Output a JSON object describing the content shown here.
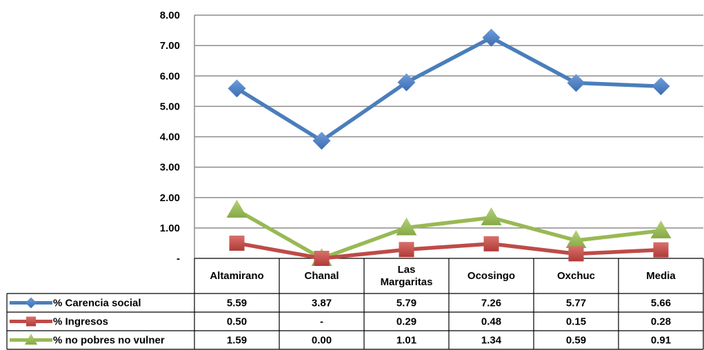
{
  "chart_data": {
    "type": "line",
    "categories": [
      "Altamirano",
      "Chanal",
      "Las Margaritas",
      "Ocosingo",
      "Oxchuc",
      "Media"
    ],
    "category_lines": [
      [
        "Altamirano"
      ],
      [
        "Chanal"
      ],
      [
        "Las",
        "Margaritas"
      ],
      [
        "Ocosingo"
      ],
      [
        "Oxchuc"
      ],
      [
        "Media"
      ]
    ],
    "series": [
      {
        "name": "% Carencia social",
        "values": [
          5.59,
          3.87,
          5.79,
          7.26,
          5.77,
          5.66
        ],
        "labels": [
          "5.59",
          "3.87",
          "5.79",
          "7.26",
          "5.77",
          "5.66"
        ],
        "color": "#4a7ebb",
        "marker": "diamond"
      },
      {
        "name": "% Ingresos",
        "values": [
          0.5,
          0.0,
          0.29,
          0.48,
          0.15,
          0.28
        ],
        "labels": [
          "0.50",
          "-",
          "0.29",
          "0.48",
          "0.15",
          "0.28"
        ],
        "color": "#be4b48",
        "marker": "square"
      },
      {
        "name": "% no pobres no vulner",
        "values": [
          1.59,
          0.0,
          1.01,
          1.34,
          0.59,
          0.91
        ],
        "labels": [
          "1.59",
          "0.00",
          "1.01",
          "1.34",
          "0.59",
          "0.91"
        ],
        "color": "#98b954",
        "marker": "triangle"
      }
    ],
    "yticks": [
      0,
      1,
      2,
      3,
      4,
      5,
      6,
      7,
      8
    ],
    "ytick_labels": [
      "-",
      "1.00",
      "2.00",
      "3.00",
      "4.00",
      "5.00",
      "6.00",
      "7.00",
      "8.00"
    ],
    "ylim": [
      0,
      8
    ],
    "grid": true,
    "legend": "data-table"
  }
}
